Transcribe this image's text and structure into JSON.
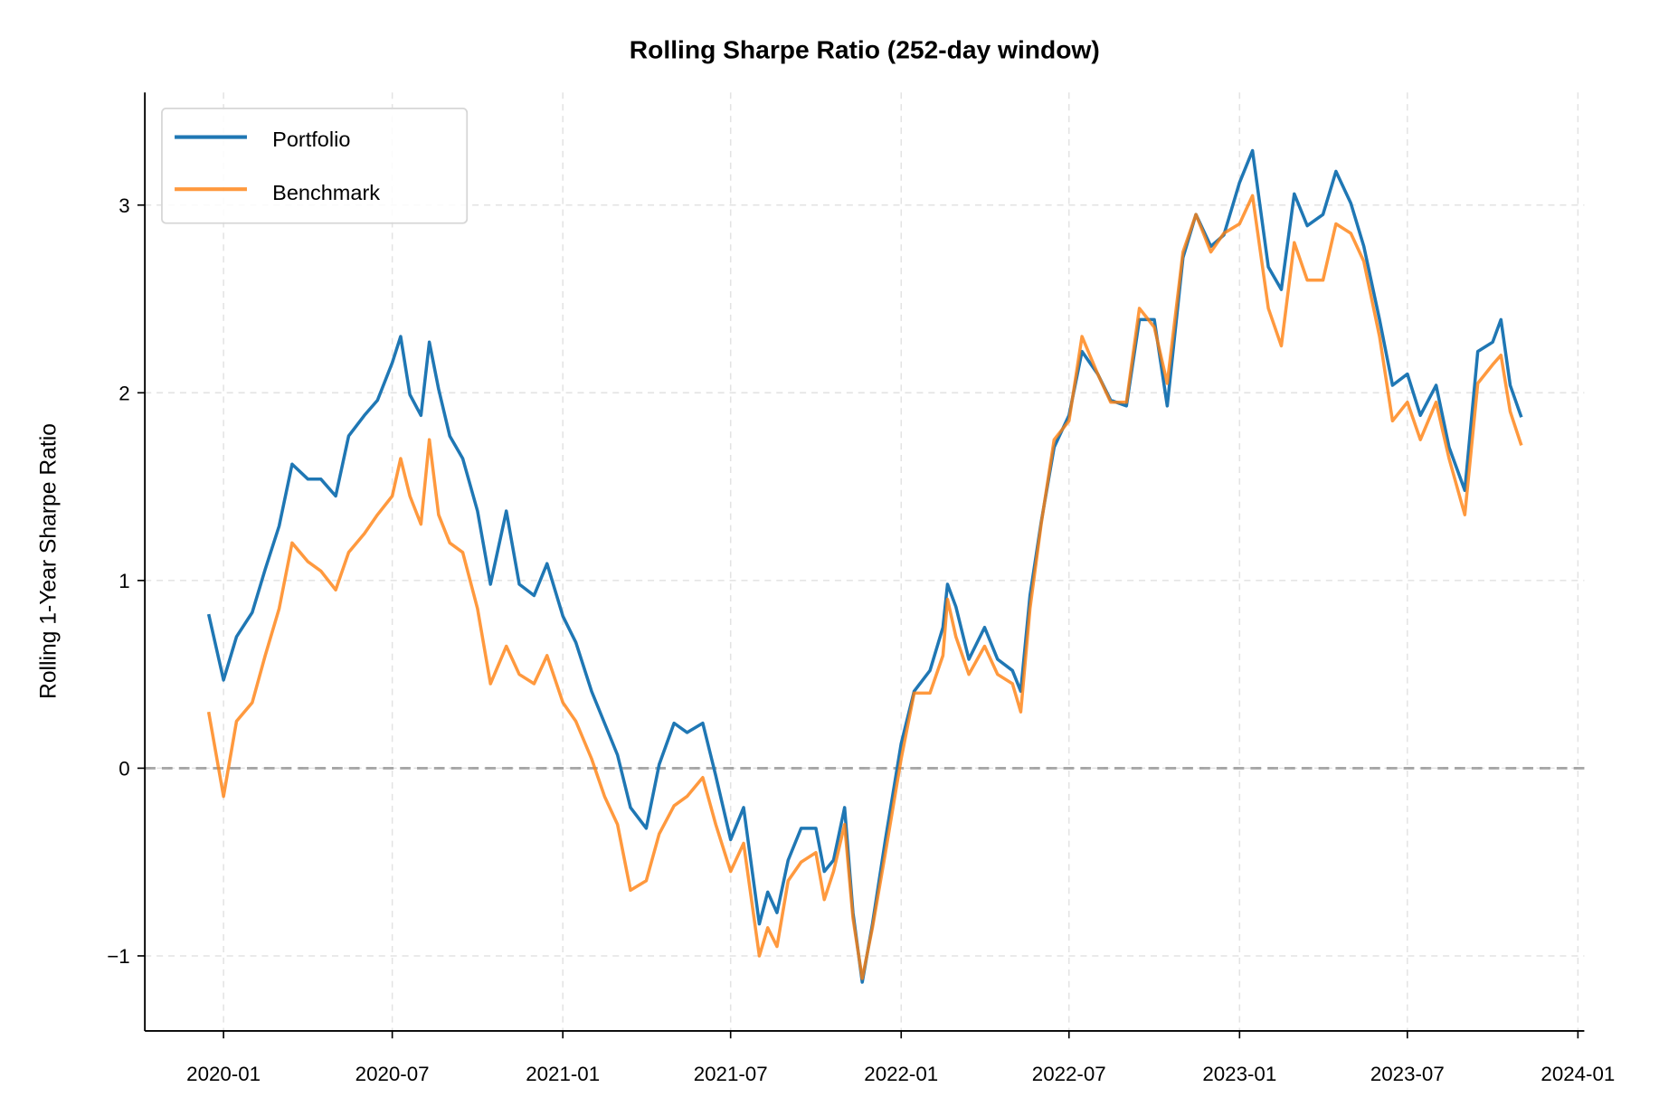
{
  "chart_data": {
    "type": "line",
    "title": "Rolling Sharpe Ratio (252-day window)",
    "xlabel": "",
    "ylabel": "Rolling 1-Year Sharpe Ratio",
    "x_ticks": [
      "2020-01",
      "2020-07",
      "2021-01",
      "2021-07",
      "2022-01",
      "2022-07",
      "2023-01",
      "2023-07",
      "2024-01"
    ],
    "y_ticks": [
      -1,
      0,
      1,
      2,
      3
    ],
    "y_tick_labels": [
      "−1",
      "0",
      "1",
      "2",
      "3"
    ],
    "ylim": [
      -1.4,
      3.6
    ],
    "xlim": [
      "2019-11-15",
      "2024-01-10"
    ],
    "grid": true,
    "legend_position": "top-left",
    "reference_line": {
      "y": 0,
      "style": "dashed",
      "color": "#999999"
    },
    "x": [
      "2019-12-16",
      "2020-01-01",
      "2020-01-15",
      "2020-02-01",
      "2020-02-15",
      "2020-03-01",
      "2020-03-15",
      "2020-04-01",
      "2020-04-15",
      "2020-05-01",
      "2020-05-15",
      "2020-06-01",
      "2020-06-15",
      "2020-07-01",
      "2020-07-10",
      "2020-07-20",
      "2020-08-01",
      "2020-08-10",
      "2020-08-20",
      "2020-09-01",
      "2020-09-15",
      "2020-10-01",
      "2020-10-15",
      "2020-11-01",
      "2020-11-15",
      "2020-12-01",
      "2020-12-15",
      "2021-01-01",
      "2021-01-15",
      "2021-02-01",
      "2021-02-15",
      "2021-03-01",
      "2021-03-15",
      "2021-04-01",
      "2021-04-15",
      "2021-05-01",
      "2021-05-15",
      "2021-06-01",
      "2021-06-15",
      "2021-07-01",
      "2021-07-15",
      "2021-08-01",
      "2021-08-10",
      "2021-08-20",
      "2021-09-01",
      "2021-09-15",
      "2021-10-01",
      "2021-10-10",
      "2021-10-20",
      "2021-11-01",
      "2021-11-10",
      "2021-11-20",
      "2021-12-01",
      "2021-12-15",
      "2022-01-01",
      "2022-01-15",
      "2022-02-01",
      "2022-02-15",
      "2022-02-20",
      "2022-03-01",
      "2022-03-15",
      "2022-04-01",
      "2022-04-15",
      "2022-05-01",
      "2022-05-10",
      "2022-05-20",
      "2022-06-01",
      "2022-06-15",
      "2022-07-01",
      "2022-07-15",
      "2022-08-01",
      "2022-08-15",
      "2022-09-01",
      "2022-09-15",
      "2022-10-01",
      "2022-10-15",
      "2022-11-01",
      "2022-11-15",
      "2022-12-01",
      "2022-12-15",
      "2023-01-01",
      "2023-01-15",
      "2023-02-01",
      "2023-02-15",
      "2023-03-01",
      "2023-03-15",
      "2023-04-01",
      "2023-04-15",
      "2023-05-01",
      "2023-05-15",
      "2023-06-01",
      "2023-06-15",
      "2023-07-01",
      "2023-07-15",
      "2023-08-01",
      "2023-08-15",
      "2023-09-01",
      "2023-09-15",
      "2023-10-01",
      "2023-10-10",
      "2023-10-20",
      "2023-11-01"
    ],
    "series": [
      {
        "name": "Portfolio",
        "color": "#1f77b4",
        "values": [
          0.82,
          0.47,
          0.7,
          0.83,
          1.06,
          1.29,
          1.62,
          1.54,
          1.54,
          1.45,
          1.77,
          1.88,
          1.96,
          2.16,
          2.3,
          1.99,
          1.88,
          2.27,
          2.02,
          1.77,
          1.65,
          1.37,
          0.98,
          1.37,
          0.98,
          0.92,
          1.09,
          0.81,
          0.67,
          0.41,
          0.24,
          0.07,
          -0.21,
          -0.32,
          0.02,
          0.24,
          0.19,
          0.24,
          -0.04,
          -0.38,
          -0.21,
          -0.83,
          -0.66,
          -0.77,
          -0.49,
          -0.32,
          -0.32,
          -0.55,
          -0.49,
          -0.21,
          -0.77,
          -1.14,
          -0.83,
          -0.38,
          0.13,
          0.41,
          0.52,
          0.75,
          0.98,
          0.86,
          0.58,
          0.75,
          0.58,
          0.52,
          0.41,
          0.92,
          1.31,
          1.71,
          1.88,
          2.22,
          2.1,
          1.96,
          1.93,
          2.39,
          2.39,
          1.93,
          2.72,
          2.95,
          2.78,
          2.84,
          3.12,
          3.29,
          2.67,
          2.55,
          3.06,
          2.89,
          2.95,
          3.18,
          3.01,
          2.78,
          2.39,
          2.04,
          2.1,
          1.88,
          2.04,
          1.71,
          1.48,
          2.22,
          2.27,
          2.39,
          2.04,
          1.87
        ]
      },
      {
        "name": "Benchmark",
        "color": "#ff7f0e",
        "values": [
          0.3,
          -0.15,
          0.25,
          0.35,
          0.6,
          0.85,
          1.2,
          1.1,
          1.05,
          0.95,
          1.15,
          1.25,
          1.35,
          1.45,
          1.65,
          1.45,
          1.3,
          1.75,
          1.35,
          1.2,
          1.15,
          0.85,
          0.45,
          0.65,
          0.5,
          0.45,
          0.6,
          0.35,
          0.25,
          0.05,
          -0.15,
          -0.3,
          -0.65,
          -0.6,
          -0.35,
          -0.2,
          -0.15,
          -0.05,
          -0.3,
          -0.55,
          -0.4,
          -1.0,
          -0.85,
          -0.95,
          -0.6,
          -0.5,
          -0.45,
          -0.7,
          -0.55,
          -0.3,
          -0.8,
          -1.12,
          -0.85,
          -0.45,
          0.05,
          0.4,
          0.4,
          0.6,
          0.9,
          0.7,
          0.5,
          0.65,
          0.5,
          0.45,
          0.3,
          0.85,
          1.3,
          1.75,
          1.85,
          2.3,
          2.1,
          1.95,
          1.95,
          2.45,
          2.35,
          2.05,
          2.75,
          2.95,
          2.75,
          2.85,
          2.9,
          3.05,
          2.45,
          2.25,
          2.8,
          2.6,
          2.6,
          2.9,
          2.85,
          2.7,
          2.3,
          1.85,
          1.95,
          1.75,
          1.95,
          1.65,
          1.35,
          2.05,
          2.15,
          2.2,
          1.9,
          1.72
        ]
      }
    ]
  }
}
